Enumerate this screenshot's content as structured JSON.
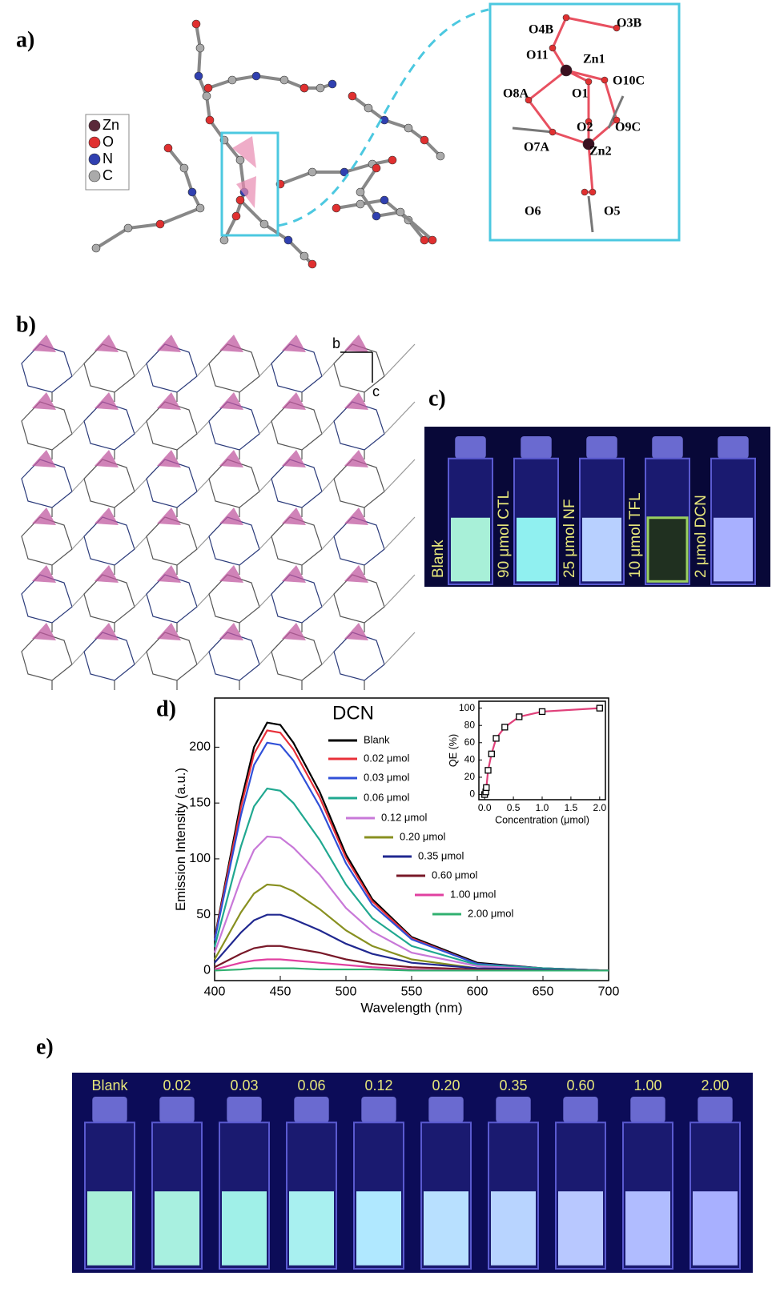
{
  "panels": {
    "a": {
      "label": "a)",
      "legend": [
        "Zn",
        "O",
        "N",
        "C"
      ],
      "atoms": [
        "O4B",
        "O3B",
        "O11",
        "Zn1",
        "O8A",
        "O1",
        "O10C",
        "O2",
        "O9C",
        "O7A",
        "Zn2",
        "O6",
        "O5"
      ]
    },
    "b": {
      "label": "b)",
      "axes": [
        "b",
        "c"
      ]
    },
    "c": {
      "label": "c)",
      "vials": [
        "Blank",
        "90 μmol CTL",
        "25 μmol NF",
        "10 μmol TFL",
        "2 μmol DCN"
      ]
    },
    "d": {
      "label": "d)"
    },
    "e": {
      "label": "e)",
      "vials": [
        "Blank",
        "0.02",
        "0.03",
        "0.06",
        "0.12",
        "0.20",
        "0.35",
        "0.60",
        "1.00",
        "2.00"
      ]
    }
  },
  "chart_data": [
    {
      "type": "line",
      "x_label": "Wavelength (nm)",
      "y_label": "Emission Intensity (a.u.)",
      "legend_title": "DCN",
      "x": [
        400,
        420,
        430,
        440,
        450,
        460,
        480,
        500,
        520,
        550,
        600,
        650,
        700
      ],
      "series": [
        {
          "name": "Blank",
          "color": "#000000",
          "values": [
            29,
            151,
            200,
            222,
            220,
            204,
            160,
            104,
            64,
            30,
            7,
            2,
            0
          ]
        },
        {
          "name": "0.02 μmol",
          "color": "#e8303a",
          "values": [
            28,
            146,
            194,
            215,
            213,
            198,
            155,
            101,
            62,
            29,
            6,
            2,
            0
          ]
        },
        {
          "name": "0.03 μmol",
          "color": "#3050d8",
          "values": [
            27,
            139,
            184,
            204,
            202,
            188,
            147,
            96,
            59,
            28,
            6,
            2,
            0
          ]
        },
        {
          "name": "0.06 μmol",
          "color": "#20a890",
          "values": [
            21,
            111,
            147,
            163,
            161,
            150,
            117,
            77,
            47,
            22,
            5,
            2,
            0
          ]
        },
        {
          "name": "0.12 μmol",
          "color": "#c878d8",
          "values": [
            16,
            82,
            108,
            120,
            119,
            110,
            86,
            56,
            35,
            16,
            4,
            1,
            0
          ]
        },
        {
          "name": "0.20 μmol",
          "color": "#889020",
          "values": [
            10,
            52,
            69,
            77,
            76,
            71,
            55,
            36,
            22,
            10,
            2,
            1,
            0
          ]
        },
        {
          "name": "0.35 μmol",
          "color": "#202890",
          "values": [
            7,
            34,
            45,
            50,
            50,
            46,
            36,
            24,
            15,
            7,
            2,
            1,
            0
          ]
        },
        {
          "name": "0.60 μmol",
          "color": "#781828",
          "values": [
            3,
            15,
            20,
            22,
            22,
            20,
            16,
            10,
            6,
            3,
            1,
            0,
            0
          ]
        },
        {
          "name": "1.00 μmol",
          "color": "#e040a0",
          "values": [
            1,
            7,
            9,
            10,
            10,
            9,
            7,
            5,
            3,
            1,
            0,
            0,
            0
          ]
        },
        {
          "name": "2.00 μmol",
          "color": "#30b070",
          "values": [
            0,
            1,
            2,
            2,
            2,
            2,
            1,
            1,
            1,
            0,
            0,
            0,
            0
          ]
        }
      ],
      "xlim": [
        400,
        700
      ],
      "xticks": [
        400,
        450,
        500,
        550,
        600,
        650,
        700
      ],
      "ylim": [
        -9,
        244
      ],
      "yticks": [
        0,
        50,
        100,
        150,
        200
      ]
    },
    {
      "type": "line",
      "x_label": "Concentration (μmol)",
      "y_label": "QE (%)",
      "marker": "square",
      "marker_color": "#000000",
      "x": [
        0,
        0.02,
        0.03,
        0.06,
        0.12,
        0.2,
        0.35,
        0.6,
        1.0,
        2.0
      ],
      "series": [
        {
          "color": "#e0407a",
          "values": [
            0,
            3,
            8,
            28,
            47,
            65,
            78,
            90,
            96,
            100
          ]
        }
      ],
      "xlim": [
        -0.1,
        2.1
      ],
      "xticks": [
        {
          "value": 0,
          "label": "0.0"
        },
        {
          "value": 0.5,
          "label": "0.5"
        },
        {
          "value": 1,
          "label": "1.0"
        },
        {
          "value": 1.5,
          "label": "1.5"
        },
        {
          "value": 2,
          "label": "2.0"
        }
      ],
      "ylim": [
        -6,
        108
      ],
      "yticks": [
        0,
        20,
        40,
        60,
        80,
        100
      ]
    }
  ]
}
